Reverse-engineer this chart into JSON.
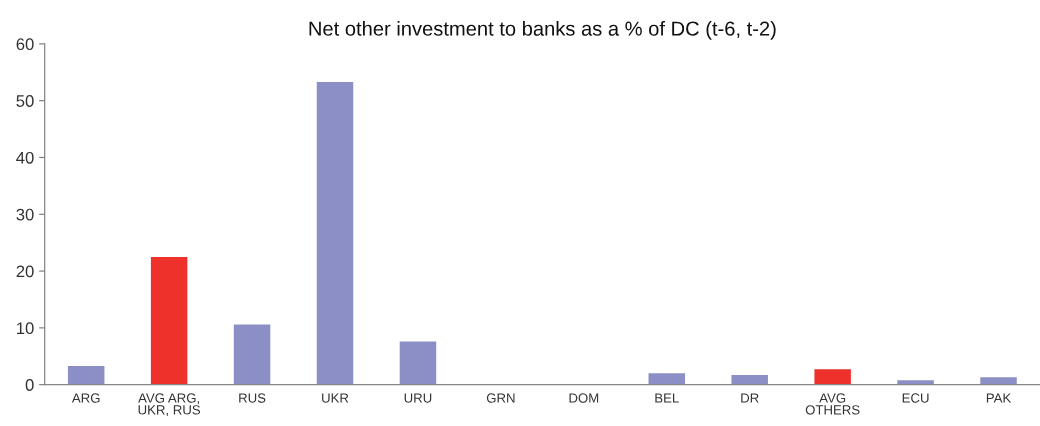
{
  "chart_data": {
    "type": "bar",
    "title": "Net other investment to banks as a % of DC (t-6, t-2)",
    "categories": [
      "ARG",
      "AVG ARG,\nUKR, RUS",
      "RUS",
      "UKR",
      "URU",
      "GRN",
      "DOM",
      "BEL",
      "DR",
      "AVG\nOTHERS",
      "ECU",
      "PAK"
    ],
    "values": [
      3.3,
      22.5,
      10.6,
      53.3,
      7.6,
      0,
      0,
      2.0,
      1.7,
      2.7,
      0.8,
      1.3
    ],
    "colors": [
      "#8b8fc5",
      "#ee312b",
      "#8b8fc5",
      "#8b8fc5",
      "#8b8fc5",
      "#8b8fc5",
      "#8b8fc5",
      "#8b8fc5",
      "#8b8fc5",
      "#ee312b",
      "#8b8fc5",
      "#8b8fc5"
    ],
    "ylim": [
      0,
      60
    ],
    "yticks": [
      0,
      10,
      20,
      30,
      40,
      50,
      60
    ],
    "grid": false
  }
}
